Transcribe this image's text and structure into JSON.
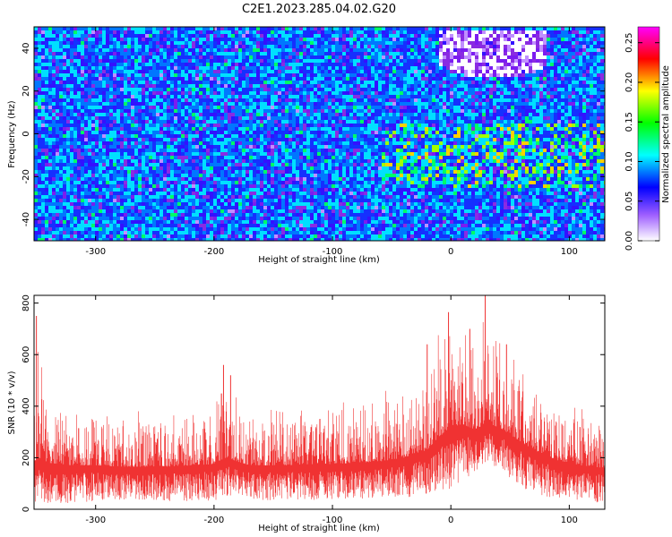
{
  "title": "C2E1.2023.285.04.02.G20",
  "chart_data": [
    {
      "type": "heatmap",
      "title": "C2E1.2023.285.04.02.G20",
      "xlabel": "Height of straight line (km)",
      "ylabel": "Frequency (Hz)",
      "xlim": [
        -352,
        130
      ],
      "ylim": [
        -50,
        50
      ],
      "x_ticks": [
        -300,
        -200,
        -100,
        0,
        100
      ],
      "y_ticks": [
        -40,
        -20,
        0,
        20,
        40
      ],
      "x_tick_labels": [
        "-300",
        "-200",
        "-100",
        "0",
        "100"
      ],
      "y_tick_labels": [
        "-40",
        "-20",
        "0",
        "20",
        "40"
      ],
      "colorbar": {
        "label": "Normalized spectral amplitude",
        "range": [
          0,
          0.27
        ],
        "ticks": [
          0.0,
          0.05,
          0.1,
          0.15,
          0.2,
          0.25
        ],
        "tick_labels": [
          "0.00",
          "0.05",
          "0.10",
          "0.15",
          "0.20",
          "0.25"
        ],
        "colormap": [
          "#ffffff",
          "#7f00ff",
          "#0000ff",
          "#00ffff",
          "#00ff00",
          "#ffff00",
          "#ff0000",
          "#ff00ff"
        ]
      },
      "features": [
        {
          "description_region_x": [
            -60,
            130
          ],
          "description_region_y": [
            -25,
            5
          ],
          "amplitude": 0.12
        },
        {
          "description_region_x": [
            -10,
            80
          ],
          "description_region_y": [
            25,
            50
          ],
          "amplitude": 0.0
        }
      ],
      "grid": false
    },
    {
      "type": "area",
      "xlabel": "Height of straight line (km)",
      "ylabel": "SNR (10 * v/v)",
      "xlim": [
        -352,
        130
      ],
      "ylim": [
        0,
        830
      ],
      "x_ticks": [
        -300,
        -200,
        -100,
        0,
        100
      ],
      "y_ticks": [
        0,
        200,
        400,
        600,
        800
      ],
      "x_tick_labels": [
        "-300",
        "-200",
        "-100",
        "0",
        "100"
      ],
      "y_tick_labels": [
        "0",
        "200",
        "400",
        "600",
        "800"
      ],
      "color": "#f03232",
      "grid": false,
      "envelope": {
        "x": [
          -352,
          -340,
          -320,
          -300,
          -280,
          -260,
          -240,
          -220,
          -200,
          -190,
          -180,
          -170,
          -160,
          -140,
          -120,
          -100,
          -80,
          -60,
          -40,
          -20,
          -10,
          0,
          10,
          20,
          30,
          40,
          50,
          60,
          70,
          80,
          90,
          100,
          110,
          120,
          130
        ],
        "low": [
          20,
          20,
          25,
          30,
          35,
          30,
          30,
          30,
          35,
          40,
          45,
          40,
          35,
          35,
          35,
          40,
          40,
          45,
          45,
          55,
          70,
          80,
          100,
          140,
          180,
          160,
          120,
          80,
          60,
          50,
          40,
          35,
          30,
          25,
          25
        ],
        "high": [
          740,
          460,
          420,
          400,
          390,
          400,
          400,
          410,
          440,
          580,
          470,
          420,
          420,
          430,
          440,
          460,
          450,
          470,
          500,
          530,
          700,
          760,
          730,
          670,
          840,
          690,
          610,
          560,
          520,
          490,
          460,
          430,
          410,
          400,
          380
        ],
        "mean": [
          190,
          180,
          170,
          170,
          165,
          165,
          165,
          170,
          175,
          200,
          185,
          170,
          170,
          170,
          175,
          175,
          180,
          185,
          200,
          230,
          280,
          320,
          330,
          310,
          330,
          320,
          290,
          260,
          230,
          210,
          190,
          180,
          170,
          165,
          160
        ]
      },
      "spikes": [
        [
          -350,
          750
        ],
        [
          -192,
          560
        ],
        [
          -186,
          520
        ],
        [
          -20,
          640
        ],
        [
          -2,
          765
        ],
        [
          16,
          700
        ],
        [
          29,
          830
        ],
        [
          47,
          640
        ]
      ]
    }
  ]
}
